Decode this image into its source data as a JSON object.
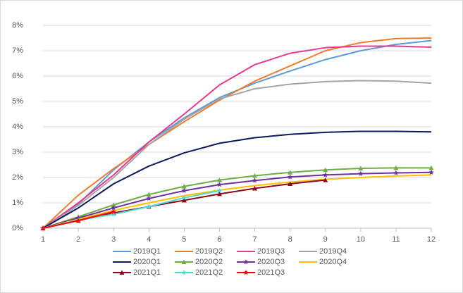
{
  "chart_data": {
    "type": "line",
    "x": [
      1,
      2,
      3,
      4,
      5,
      6,
      7,
      8,
      9,
      10,
      11,
      12
    ],
    "xlim": [
      1,
      12
    ],
    "xticks": [
      1,
      2,
      3,
      4,
      5,
      6,
      7,
      8,
      9,
      10,
      11,
      12
    ],
    "ylim": [
      0,
      8
    ],
    "yticks": [
      {
        "value": 0,
        "label": "0%"
      },
      {
        "value": 1,
        "label": "1%"
      },
      {
        "value": 2,
        "label": "2%"
      },
      {
        "value": 3,
        "label": "3%"
      },
      {
        "value": 4,
        "label": "4%"
      },
      {
        "value": 5,
        "label": "5%"
      },
      {
        "value": 6,
        "label": "6%"
      },
      {
        "value": 7,
        "label": "7%"
      },
      {
        "value": 8,
        "label": "8%"
      }
    ],
    "grid": true,
    "legend": "bottom",
    "series": [
      {
        "name": "2019Q1",
        "color": "#5b9bd5",
        "marker": "none",
        "values": [
          0,
          0.95,
          2.3,
          3.4,
          4.35,
          5.15,
          5.72,
          6.2,
          6.65,
          7.0,
          7.25,
          7.4
        ]
      },
      {
        "name": "2019Q2",
        "color": "#ed7d31",
        "marker": "none",
        "values": [
          0,
          1.3,
          2.35,
          3.3,
          4.2,
          5.05,
          5.8,
          6.4,
          7.0,
          7.32,
          7.48,
          7.5
        ]
      },
      {
        "name": "2019Q3",
        "color": "#e8388f",
        "marker": "none",
        "values": [
          0,
          1.0,
          2.1,
          3.4,
          4.5,
          5.65,
          6.45,
          6.9,
          7.12,
          7.18,
          7.18,
          7.14
        ]
      },
      {
        "name": "2019Q4",
        "color": "#a5a5a5",
        "marker": "none",
        "values": [
          0,
          0.9,
          2.0,
          3.3,
          4.3,
          5.1,
          5.5,
          5.68,
          5.78,
          5.82,
          5.8,
          5.72
        ]
      },
      {
        "name": "2020Q1",
        "color": "#0d1b5e",
        "marker": "none",
        "values": [
          0,
          0.8,
          1.75,
          2.45,
          2.97,
          3.35,
          3.57,
          3.7,
          3.78,
          3.82,
          3.82,
          3.8
        ]
      },
      {
        "name": "2020Q2",
        "color": "#70ad47",
        "marker": "triangle",
        "values": [
          0,
          0.45,
          0.92,
          1.33,
          1.65,
          1.9,
          2.07,
          2.2,
          2.3,
          2.36,
          2.38,
          2.38
        ]
      },
      {
        "name": "2020Q3",
        "color": "#7030a0",
        "marker": "star",
        "values": [
          0,
          0.4,
          0.8,
          1.17,
          1.48,
          1.72,
          1.88,
          2.02,
          2.1,
          2.15,
          2.18,
          2.2
        ]
      },
      {
        "name": "2020Q4",
        "color": "#ffc000",
        "marker": "none",
        "values": [
          0,
          0.35,
          0.7,
          1.0,
          1.28,
          1.5,
          1.68,
          1.82,
          1.93,
          2.0,
          2.06,
          2.1
        ]
      },
      {
        "name": "2021Q1",
        "color": "#8b0a1e",
        "marker": "triangle",
        "values": [
          0,
          0.3,
          0.6,
          0.85,
          1.1,
          1.35,
          1.57,
          1.75,
          1.9,
          null,
          null,
          null
        ]
      },
      {
        "name": "2021Q2",
        "color": "#4dd9d0",
        "marker": "star",
        "values": [
          0,
          0.32,
          0.55,
          0.85,
          1.2,
          1.48,
          null,
          null,
          null,
          null,
          null,
          null
        ]
      },
      {
        "name": "2021Q3",
        "color": "#ff0000",
        "marker": "star",
        "values": [
          0,
          0.3,
          0.65,
          null,
          null,
          null,
          null,
          null,
          null,
          null,
          null,
          null
        ]
      }
    ]
  }
}
